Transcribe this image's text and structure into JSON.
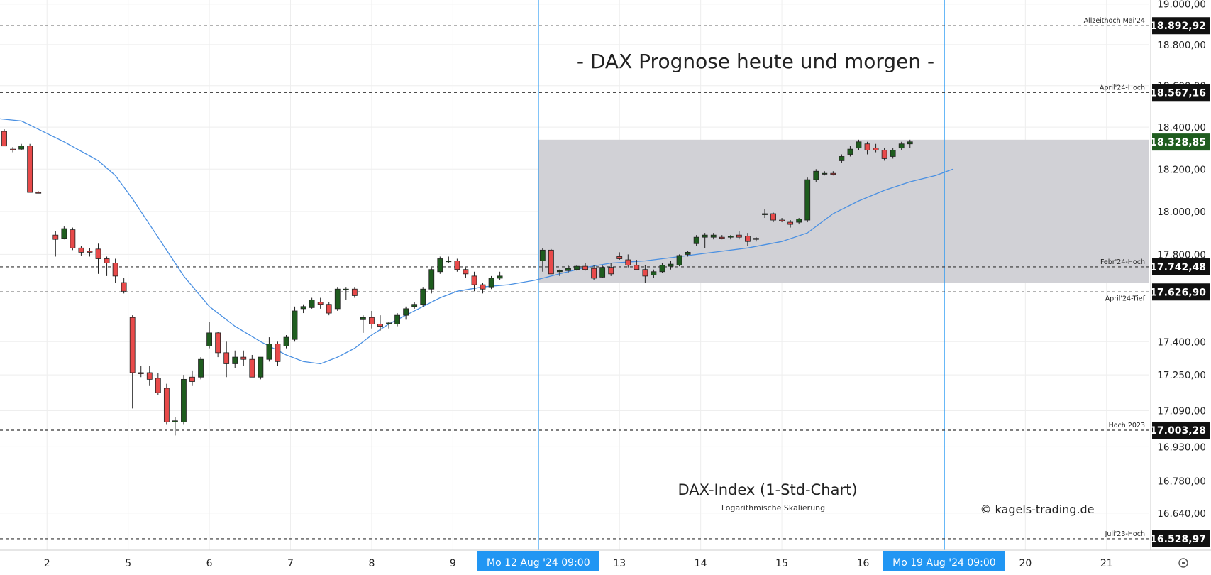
{
  "chart_data": {
    "type": "candlestick",
    "title": "- DAX Prognose heute und morgen -",
    "subtitle": "DAX-Index (1-Std-Chart)",
    "scale_note": "Logarithmische Skalierung",
    "copyright": "© kagels-trading.de",
    "y_axis": {
      "position": "right",
      "scale": "log",
      "ticks": [
        "19.000,00",
        "18.800,00",
        "18.600,00",
        "18.400,00",
        "18.200,00",
        "18.000,00",
        "17.800,00",
        "17.400,00",
        "17.250,00",
        "17.090,00",
        "16.930,00",
        "16.780,00",
        "16.640,00"
      ],
      "tick_values": [
        19000,
        18800,
        18600,
        18400,
        18200,
        18000,
        17800,
        17400,
        17250,
        17090,
        16930,
        16780,
        16640
      ],
      "range": [
        16480,
        19020
      ]
    },
    "x_axis": {
      "ticks": [
        "2",
        "5",
        "6",
        "7",
        "8",
        "9",
        "13",
        "14",
        "15",
        "16",
        "20",
        "21"
      ],
      "tick_index": [
        2,
        11.5,
        21,
        30.5,
        40,
        49.5,
        69,
        78.5,
        88,
        97.5,
        116.5,
        126
      ],
      "range_index": [
        -3.5,
        131
      ]
    },
    "highlight_box": {
      "from_index": 59.5,
      "to_index": 131,
      "top": 18340,
      "bottom": 17670,
      "color": "#d1d1d6"
    },
    "vertical_markers": [
      {
        "index": 59.5,
        "label": "Mo 12 Aug '24   09:00"
      },
      {
        "index": 107,
        "label": "Mo 19 Aug '24   09:00"
      }
    ],
    "levels": [
      {
        "name": "Allzeithoch Mai'24",
        "value": 18892.92,
        "badge": "18.892,92",
        "side": "above"
      },
      {
        "name": "April'24-Hoch",
        "value": 18567.16,
        "badge": "18.567,16",
        "side": "above"
      },
      {
        "name": "Febr'24-Hoch",
        "value": 17742.48,
        "badge": "17.742,48",
        "side": "above"
      },
      {
        "name": "April'24-Tief",
        "value": 17626.9,
        "badge": "17.626,90",
        "side": "below"
      },
      {
        "name": "Hoch 2023",
        "value": 17003.28,
        "badge": "17.003,28",
        "side": "above"
      },
      {
        "name": "Juli'23-Hoch",
        "value": 16528.97,
        "badge": "16.528,97",
        "side": "above"
      }
    ],
    "last_price": {
      "value": 18328.85,
      "badge": "18.328,85",
      "color": "#1e5c1e"
    },
    "moving_average": [
      [
        -3.5,
        18440
      ],
      [
        -1,
        18430
      ],
      [
        0,
        18410
      ],
      [
        4,
        18330
      ],
      [
        8,
        18240
      ],
      [
        10,
        18170
      ],
      [
        12,
        18060
      ],
      [
        15,
        17880
      ],
      [
        18,
        17700
      ],
      [
        21,
        17560
      ],
      [
        24,
        17470
      ],
      [
        27,
        17400
      ],
      [
        30,
        17340
      ],
      [
        32,
        17310
      ],
      [
        34,
        17300
      ],
      [
        36,
        17330
      ],
      [
        38,
        17370
      ],
      [
        40,
        17430
      ],
      [
        42,
        17480
      ],
      [
        44,
        17520
      ],
      [
        46,
        17560
      ],
      [
        48,
        17600
      ],
      [
        50,
        17630
      ],
      [
        53,
        17650
      ],
      [
        56,
        17660
      ],
      [
        59,
        17680
      ],
      [
        62,
        17710
      ],
      [
        65,
        17740
      ],
      [
        68,
        17760
      ],
      [
        72,
        17770
      ],
      [
        76,
        17790
      ],
      [
        80,
        17810
      ],
      [
        84,
        17830
      ],
      [
        88,
        17860
      ],
      [
        91,
        17900
      ],
      [
        94,
        17990
      ],
      [
        97,
        18050
      ],
      [
        100,
        18100
      ],
      [
        103,
        18140
      ],
      [
        106,
        18170
      ],
      [
        108,
        18200
      ]
    ],
    "candles": [
      [
        -3,
        18380,
        18390,
        18310,
        18310
      ],
      [
        -2,
        18295,
        18305,
        18280,
        18290
      ],
      [
        -1,
        18295,
        18320,
        18290,
        18310
      ],
      [
        0,
        18310,
        18320,
        18090,
        18090
      ],
      [
        1,
        18090,
        18095,
        18085,
        18088
      ],
      [
        3,
        17890,
        17910,
        17790,
        17870
      ],
      [
        4,
        17875,
        17930,
        17870,
        17920
      ],
      [
        5,
        17915,
        17925,
        17820,
        17830
      ],
      [
        6,
        17830,
        17840,
        17795,
        17810
      ],
      [
        7,
        17815,
        17830,
        17790,
        17810
      ],
      [
        8,
        17825,
        17850,
        17710,
        17780
      ],
      [
        9,
        17780,
        17790,
        17700,
        17760
      ],
      [
        10,
        17760,
        17780,
        17670,
        17700
      ],
      [
        11,
        17670,
        17690,
        17620,
        17630
      ],
      [
        12,
        17510,
        17520,
        17100,
        17260
      ],
      [
        13,
        17260,
        17290,
        17240,
        17255
      ],
      [
        14,
        17260,
        17290,
        17200,
        17230
      ],
      [
        15,
        17235,
        17260,
        17160,
        17170
      ],
      [
        16,
        17190,
        17210,
        17030,
        17040
      ],
      [
        17,
        17040,
        17060,
        16980,
        17045
      ],
      [
        18,
        17040,
        17250,
        17030,
        17230
      ],
      [
        19,
        17240,
        17270,
        17200,
        17220
      ],
      [
        20,
        17240,
        17330,
        17230,
        17320
      ],
      [
        21,
        17380,
        17490,
        17370,
        17440
      ],
      [
        22,
        17440,
        17445,
        17330,
        17350
      ],
      [
        23,
        17350,
        17400,
        17240,
        17300
      ],
      [
        24,
        17300,
        17360,
        17280,
        17330
      ],
      [
        25,
        17330,
        17360,
        17290,
        17320
      ],
      [
        26,
        17320,
        17340,
        17240,
        17240
      ],
      [
        27,
        17240,
        17330,
        17230,
        17330
      ],
      [
        28,
        17320,
        17420,
        17310,
        17390
      ],
      [
        29,
        17390,
        17400,
        17290,
        17310
      ],
      [
        30,
        17380,
        17430,
        17370,
        17420
      ],
      [
        31,
        17410,
        17560,
        17400,
        17540
      ],
      [
        32,
        17550,
        17570,
        17530,
        17560
      ],
      [
        33,
        17555,
        17600,
        17550,
        17590
      ],
      [
        34,
        17580,
        17600,
        17550,
        17570
      ],
      [
        35,
        17570,
        17580,
        17520,
        17530
      ],
      [
        36,
        17550,
        17650,
        17540,
        17640
      ],
      [
        37,
        17640,
        17650,
        17590,
        17640
      ],
      [
        38,
        17640,
        17650,
        17600,
        17610
      ],
      [
        39,
        17500,
        17520,
        17440,
        17510
      ],
      [
        40,
        17510,
        17540,
        17460,
        17480
      ],
      [
        41,
        17480,
        17520,
        17450,
        17470
      ],
      [
        42,
        17480,
        17490,
        17460,
        17485
      ],
      [
        43,
        17480,
        17530,
        17470,
        17520
      ],
      [
        44,
        17520,
        17560,
        17500,
        17550
      ],
      [
        45,
        17560,
        17580,
        17550,
        17570
      ],
      [
        46,
        17570,
        17650,
        17560,
        17640
      ],
      [
        47,
        17640,
        17740,
        17620,
        17730
      ],
      [
        48,
        17720,
        17790,
        17710,
        17780
      ],
      [
        49,
        17770,
        17790,
        17760,
        17770
      ],
      [
        50,
        17770,
        17780,
        17720,
        17730
      ],
      [
        51,
        17730,
        17740,
        17690,
        17710
      ],
      [
        52,
        17700,
        17720,
        17630,
        17660
      ],
      [
        53,
        17660,
        17670,
        17620,
        17640
      ],
      [
        54,
        17650,
        17700,
        17640,
        17690
      ],
      [
        55,
        17690,
        17720,
        17680,
        17700
      ],
      [
        60,
        17770,
        17830,
        17720,
        17820
      ],
      [
        61,
        17820,
        17825,
        17710,
        17710
      ],
      [
        62,
        17720,
        17730,
        17700,
        17725
      ],
      [
        63,
        17725,
        17750,
        17715,
        17735
      ],
      [
        64,
        17730,
        17750,
        17725,
        17745
      ],
      [
        65,
        17745,
        17760,
        17725,
        17730
      ],
      [
        66,
        17735,
        17750,
        17680,
        17690
      ],
      [
        67,
        17695,
        17750,
        17690,
        17740
      ],
      [
        68,
        17740,
        17760,
        17700,
        17710
      ],
      [
        69,
        17790,
        17810,
        17775,
        17780
      ],
      [
        70,
        17775,
        17800,
        17740,
        17750
      ],
      [
        71,
        17750,
        17775,
        17730,
        17730
      ],
      [
        72,
        17730,
        17750,
        17670,
        17700
      ],
      [
        73,
        17705,
        17730,
        17690,
        17720
      ],
      [
        74,
        17720,
        17760,
        17715,
        17750
      ],
      [
        75,
        17745,
        17770,
        17730,
        17755
      ],
      [
        76,
        17750,
        17800,
        17745,
        17795
      ],
      [
        77,
        17800,
        17815,
        17790,
        17810
      ],
      [
        78,
        17850,
        17890,
        17840,
        17880
      ],
      [
        79,
        17880,
        17900,
        17830,
        17890
      ],
      [
        80,
        17880,
        17900,
        17870,
        17890
      ],
      [
        81,
        17880,
        17890,
        17870,
        17875
      ],
      [
        82,
        17880,
        17890,
        17870,
        17885
      ],
      [
        83,
        17890,
        17910,
        17870,
        17880
      ],
      [
        84,
        17885,
        17900,
        17840,
        17860
      ],
      [
        85,
        17870,
        17880,
        17860,
        17875
      ],
      [
        86,
        17985,
        18010,
        17970,
        17990
      ],
      [
        87,
        17990,
        17995,
        17950,
        17960
      ],
      [
        88,
        17960,
        17970,
        17950,
        17955
      ],
      [
        89,
        17950,
        17960,
        17925,
        17940
      ],
      [
        90,
        17950,
        17970,
        17940,
        17965
      ],
      [
        91,
        17960,
        18160,
        17950,
        18150
      ],
      [
        92,
        18150,
        18200,
        18140,
        18190
      ],
      [
        93,
        18180,
        18190,
        18170,
        18180
      ],
      [
        94,
        18180,
        18190,
        18170,
        18175
      ],
      [
        95,
        18240,
        18270,
        18230,
        18260
      ],
      [
        96,
        18270,
        18310,
        18260,
        18295
      ],
      [
        97,
        18300,
        18340,
        18290,
        18330
      ],
      [
        98,
        18320,
        18330,
        18270,
        18290
      ],
      [
        99,
        18300,
        18320,
        18280,
        18290
      ],
      [
        100,
        18290,
        18300,
        18240,
        18250
      ],
      [
        101,
        18260,
        18300,
        18250,
        18290
      ],
      [
        102,
        18300,
        18330,
        18290,
        18320
      ],
      [
        103,
        18320,
        18340,
        18300,
        18330
      ]
    ],
    "colors": {
      "up": "#1e5c1e",
      "down": "#e84a4a",
      "ma": "#4a90e2",
      "marker": "#2196f3",
      "badge": "#111111"
    }
  }
}
